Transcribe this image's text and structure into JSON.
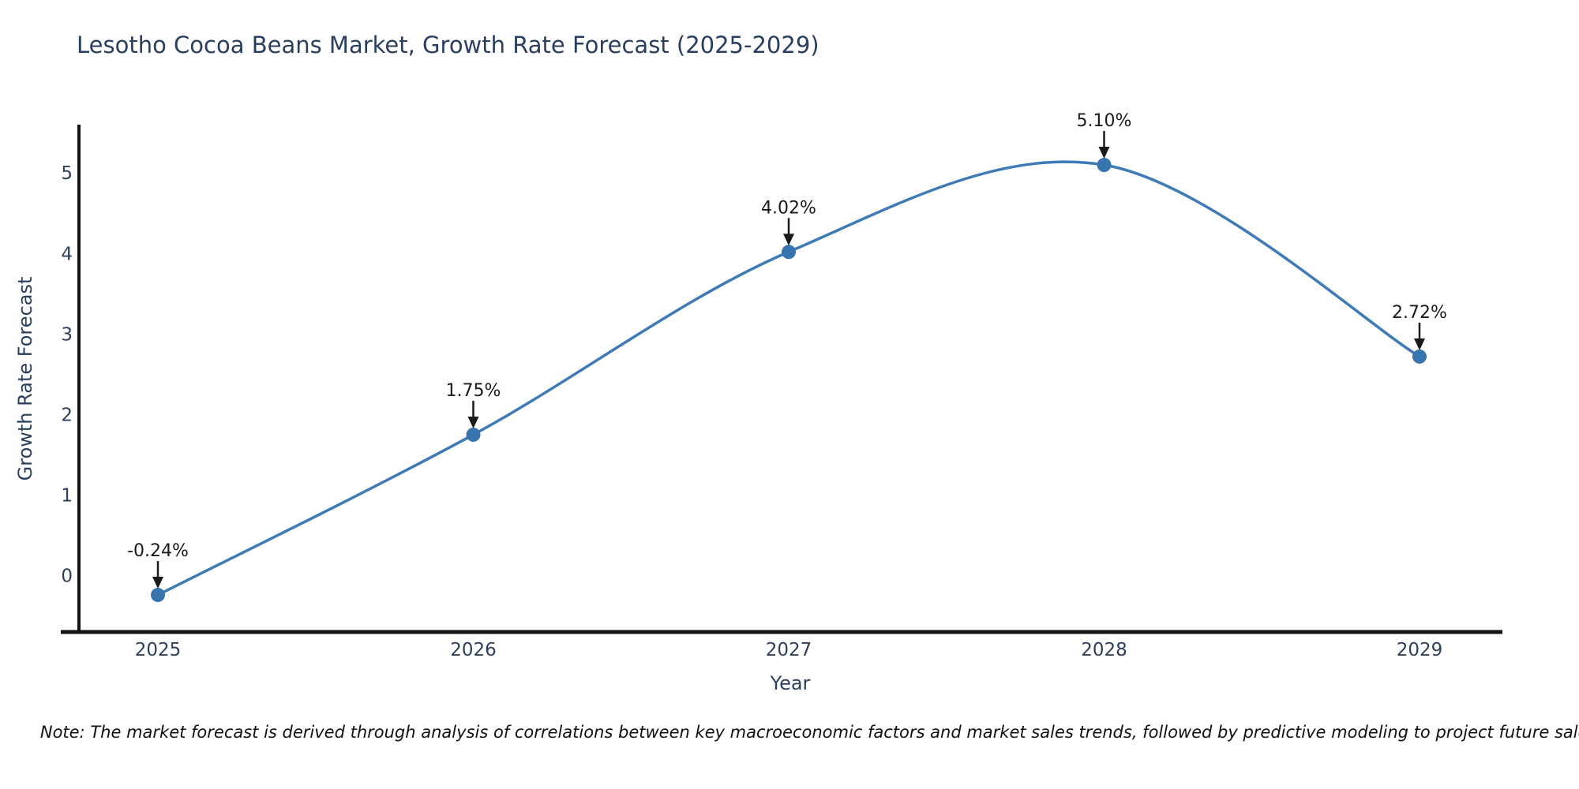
{
  "figure": {
    "note": "Note: The market forecast is derived through analysis of correlations between key macroeconomic factors and market sales trends, followed by predictive modeling to project future sales."
  },
  "chart_data": {
    "type": "line",
    "title": "Lesotho Cocoa Beans Market, Growth Rate Forecast (2025-2029)",
    "xlabel": "Year",
    "ylabel": "Growth Rate Forecast",
    "categories": [
      "2025",
      "2026",
      "2027",
      "2028",
      "2029"
    ],
    "x": [
      2025,
      2026,
      2027,
      2028,
      2029
    ],
    "series": [
      {
        "name": "Growth Rate Forecast",
        "values": [
          -0.24,
          1.75,
          4.02,
          5.1,
          2.72
        ]
      }
    ],
    "point_labels": [
      "-0.24%",
      "1.75%",
      "4.02%",
      "5.10%",
      "2.72%"
    ],
    "yticks": [
      0,
      1,
      2,
      3,
      4,
      5
    ],
    "ylim": [
      -0.7,
      5.6
    ],
    "grid": false,
    "legend": "none",
    "line_shape": "spline",
    "colors": {
      "line": "#3d7ab6",
      "marker": "#3875af",
      "axis": "#141414",
      "tick_text": "#2f3f58",
      "title_text": "#2a3f5f",
      "annotation": "#1a1a1a"
    }
  }
}
